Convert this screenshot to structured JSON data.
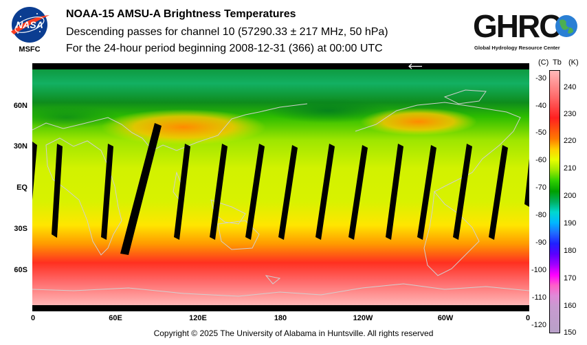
{
  "header": {
    "title": "NOAA-15 AMSU-A Brightness Temperatures",
    "subtitle_1": "Descending passes for channel 10 (57290.33 ± 217 MHz, 50 hPa)",
    "subtitle_2": "For the 24-hour period beginning 2008-12-31 (366) at 00:00 UTC"
  },
  "logos": {
    "nasa": {
      "text": "NASA",
      "caption": "MSFC",
      "icon": "nasa-meatball-logo"
    },
    "ghrc": {
      "text": "GHRC",
      "caption": "Global Hydrology Resource Center",
      "icon": "earth-globe-logo"
    }
  },
  "map": {
    "lat_labels": [
      "60N",
      "30N",
      "EQ",
      "30S",
      "60S"
    ],
    "lon_labels": [
      "0",
      "60E",
      "120E",
      "180",
      "120W",
      "60W",
      "0"
    ],
    "orbit_direction_icon": "arrow-left-icon",
    "colors": {
      "polar_south": "#ffb0b0",
      "south_mid": "#ff2a2a",
      "subtropics": "#ffd800",
      "tropics": "#c8f000",
      "north_mid": "#14a800",
      "north_warm": "#ff8c00",
      "gaps": "#000000",
      "coastline": "#cfcfcf"
    }
  },
  "colorbar": {
    "unit_celsius": "(C)",
    "unit_tb": "Tb",
    "unit_kelvin": "(K)",
    "celsius_ticks": [
      "-30",
      "-40",
      "-50",
      "-60",
      "-70",
      "-80",
      "-90",
      "-100",
      "-110",
      "-120"
    ],
    "kelvin_ticks": [
      "240",
      "230",
      "220",
      "210",
      "200",
      "190",
      "180",
      "170",
      "160",
      "150"
    ]
  },
  "footer": {
    "copyright": "Copyright © 2025 The University of Alabama in Huntsville.  All rights reserved"
  }
}
